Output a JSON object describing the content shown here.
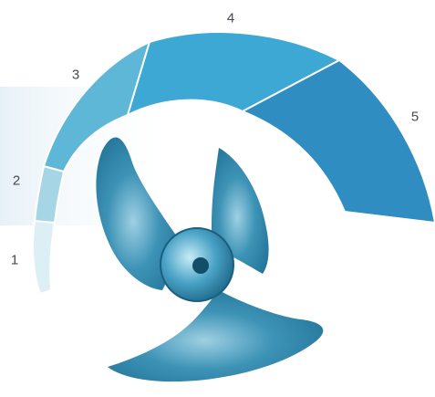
{
  "stages": [
    {
      "label": "1",
      "color": "#dceff5"
    },
    {
      "label": "2",
      "color": "#a6d6e6"
    },
    {
      "label": "3",
      "color": "#5eb7d6"
    },
    {
      "label": "4",
      "color": "#3ea8d5"
    },
    {
      "label": "5",
      "color": "#2f8dc2"
    }
  ],
  "fan": {
    "icon": "fan-blade-icon",
    "color": "#2f86a8"
  },
  "background_panel_color": "#e9f3f8"
}
